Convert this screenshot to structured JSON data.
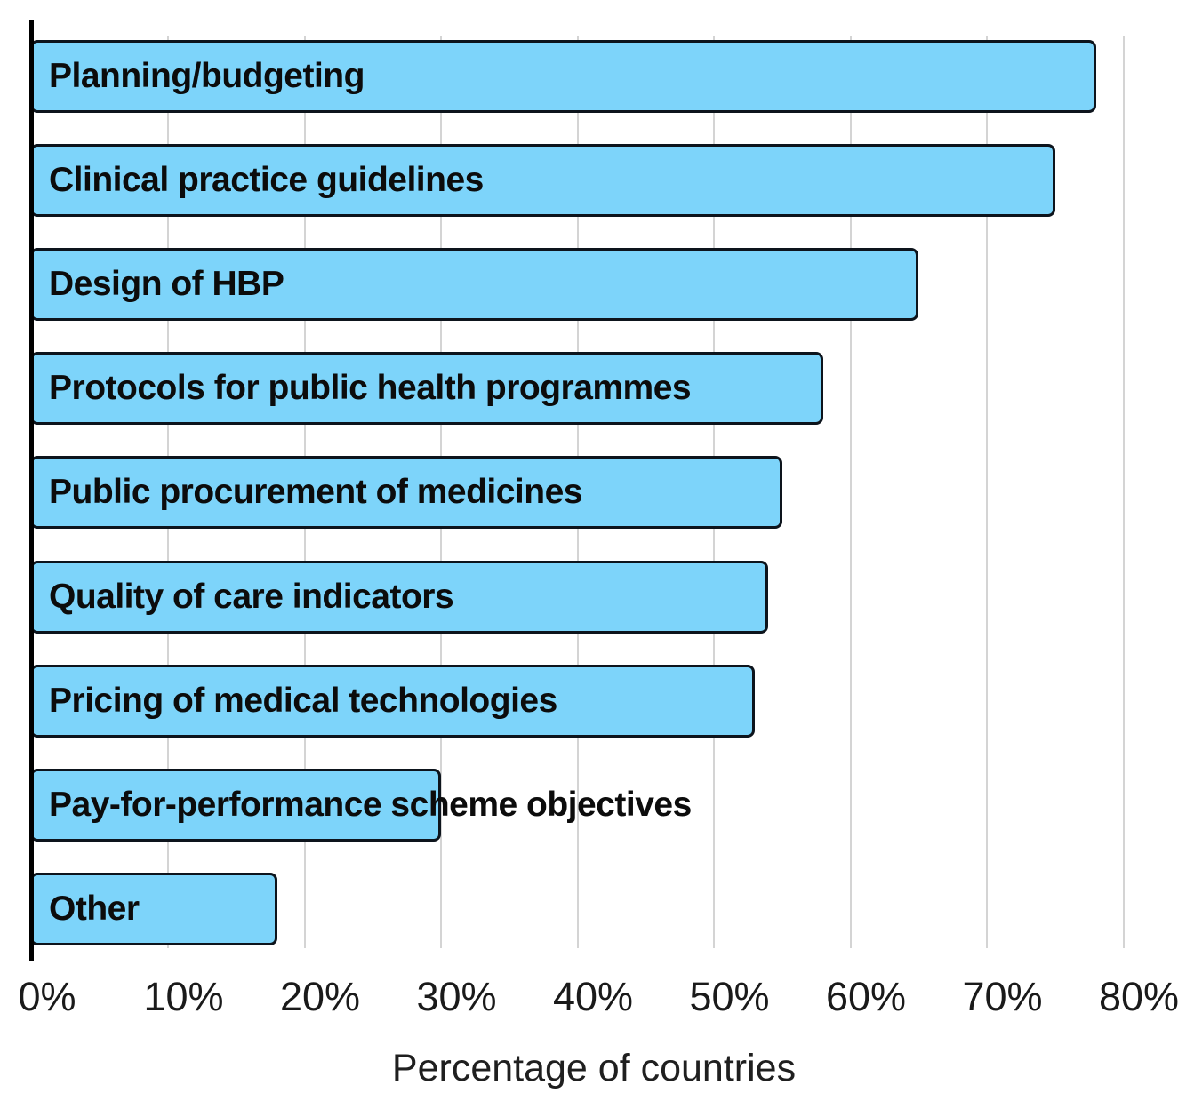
{
  "chart_data": {
    "type": "bar",
    "orientation": "horizontal",
    "title": "",
    "categories": [
      "Planning/budgeting",
      "Clinical practice guidelines",
      "Design of HBP",
      "Protocols for public health programmes",
      "Public procurement of medicines",
      "Quality of care indicators",
      "Pricing of medical technologies",
      "Pay-for-performance scheme objectives",
      "Other"
    ],
    "values": [
      78,
      75,
      65,
      58,
      55,
      54,
      53,
      30,
      18
    ],
    "unit": "%",
    "xlabel": "Percentage of countries",
    "xlim": [
      0,
      80
    ],
    "xticks": [
      0,
      10,
      20,
      30,
      40,
      50,
      60,
      70,
      80
    ],
    "xtick_labels": [
      "0%",
      "10%",
      "20%",
      "30%",
      "40%",
      "50%",
      "60%",
      "70%",
      "80%"
    ],
    "grid": "vertical gridlines every 10%",
    "legend": "none",
    "colors": {
      "bar_fill": "#7dd4fa",
      "bar_border": "#0d141c",
      "gridline": "#d4d4d4",
      "axis_line": "#000000",
      "bar_label_text": "#0c0c0c",
      "tick_text": "#1a1a1a",
      "axis_title_text": "#1f1f1f",
      "background": "#ffffff"
    }
  }
}
